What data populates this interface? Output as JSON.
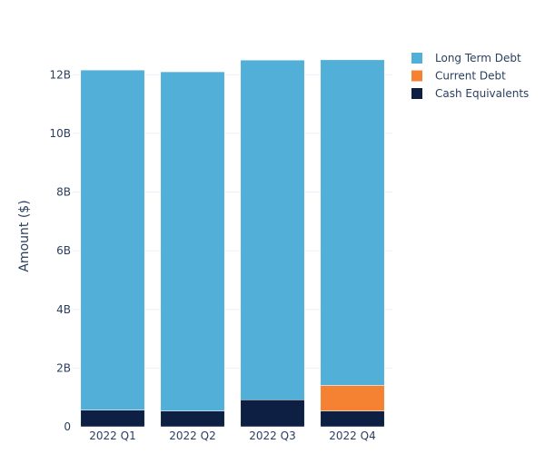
{
  "chart_data": {
    "type": "bar",
    "stacked": true,
    "title": "",
    "xlabel": "",
    "ylabel": "Amount ($)",
    "categories": [
      "2022 Q1",
      "2022 Q2",
      "2022 Q3",
      "2022 Q4"
    ],
    "ylim": [
      0,
      13000000000
    ],
    "yticks": [
      0,
      2000000000,
      4000000000,
      6000000000,
      8000000000,
      10000000000,
      12000000000
    ],
    "ytick_labels": [
      "0",
      "2B",
      "4B",
      "6B",
      "8B",
      "10B",
      "12B"
    ],
    "grid": true,
    "legend_position": "top-right",
    "series": [
      {
        "name": "Cash Equivalents",
        "color": "#0d1f42",
        "values": [
          570000000,
          540000000,
          920000000,
          540000000
        ]
      },
      {
        "name": "Current Debt",
        "color": "#f58233",
        "values": [
          0,
          0,
          0,
          870000000
        ]
      },
      {
        "name": "Long Term Debt",
        "color": "#52b0d8",
        "values": [
          11590000000,
          11560000000,
          11580000000,
          11100000000
        ]
      }
    ],
    "legend_order": [
      "Long Term Debt",
      "Current Debt",
      "Cash Equivalents"
    ]
  }
}
